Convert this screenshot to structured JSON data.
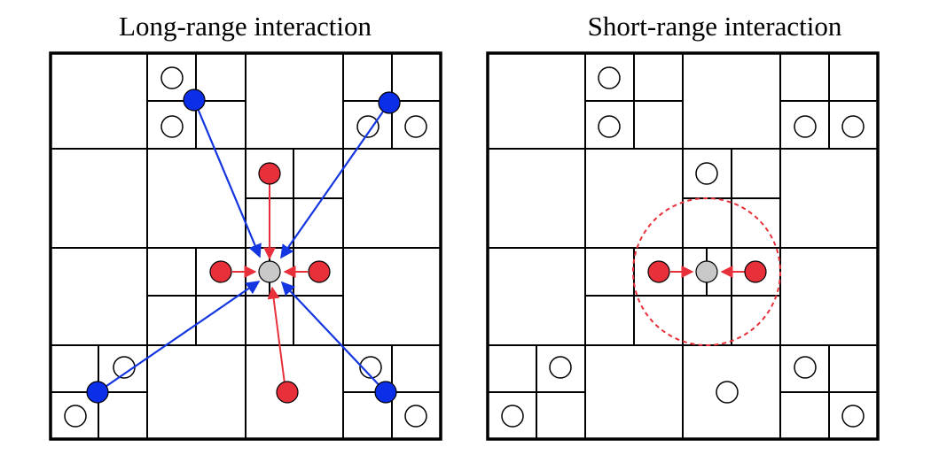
{
  "panels": {
    "left": {
      "title": "Long-range interaction"
    },
    "right": {
      "title": "Short-range interaction"
    }
  },
  "colors": {
    "grid_line": "#000000",
    "empty_particle_fill": "#ffffff",
    "target_particle_fill": "#c8c8c8",
    "near_particle_fill": "#e8303a",
    "far_particle_fill": "#0b2ee8",
    "near_arrow": "#e8303a",
    "far_arrow": "#1436e0",
    "cutoff_circle": "#e8303a"
  },
  "icons": {
    "empty_particle": "circle-outline-icon",
    "target_particle": "gray-circle-icon",
    "near_particle": "red-circle-icon",
    "far_particle": "blue-circle-icon",
    "cutoff": "dashed-circle-icon"
  }
}
